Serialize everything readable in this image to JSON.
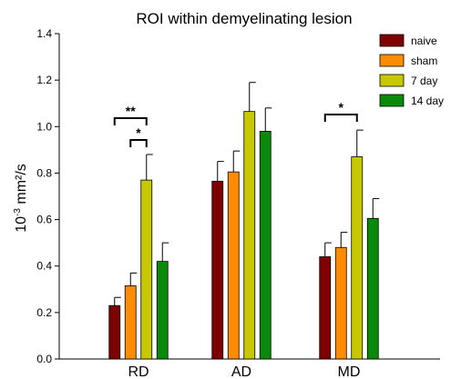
{
  "chart_data": {
    "type": "bar",
    "title": "ROI within demyelinating lesion",
    "ylabel_base": "10",
    "ylabel_exp": "-3",
    "ylabel_rest": " mm²/s",
    "xlabel": "",
    "ylim": [
      0.0,
      1.4
    ],
    "yticks": [
      "0.0",
      "0.2",
      "0.4",
      "0.6",
      "0.8",
      "1.0",
      "1.2",
      "1.4"
    ],
    "categories": [
      "RD",
      "AD",
      "MD"
    ],
    "series": [
      {
        "name": "naive",
        "color": "#7f0000",
        "values": [
          0.23,
          0.765,
          0.44
        ],
        "errors": [
          0.035,
          0.085,
          0.06
        ]
      },
      {
        "name": "sham",
        "color": "#ff8c00",
        "values": [
          0.315,
          0.805,
          0.48
        ],
        "errors": [
          0.055,
          0.09,
          0.065
        ]
      },
      {
        "name": "7 day",
        "color": "#c8c800",
        "values": [
          0.77,
          1.065,
          0.87
        ],
        "errors": [
          0.11,
          0.125,
          0.115
        ]
      },
      {
        "name": "14 day",
        "color": "#0a8a0a",
        "values": [
          0.42,
          0.98,
          0.605
        ],
        "errors": [
          0.08,
          0.1,
          0.085
        ]
      }
    ],
    "significance": [
      {
        "category": "RD",
        "from_series": "naive",
        "to_series": "7 day",
        "label": "**"
      },
      {
        "category": "RD",
        "from_series": "sham",
        "to_series": "7 day",
        "label": "*"
      },
      {
        "category": "MD",
        "from_series": "naive",
        "to_series": "7 day",
        "label": "*"
      }
    ],
    "legend_position": "top-right",
    "grid": false
  }
}
